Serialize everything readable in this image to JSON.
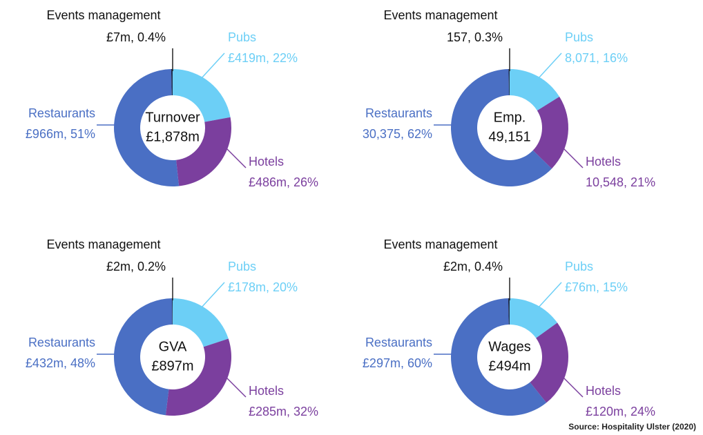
{
  "chart_data": [
    {
      "type": "pie",
      "center_title": "Turnover",
      "center_value": "£1,878m",
      "categories": [
        "Pubs",
        "Hotels",
        "Restaurants",
        "Events management"
      ],
      "values": [
        22,
        26,
        51,
        0.4
      ],
      "value_labels": [
        "£419m, 22%",
        "£486m, 26%",
        "£966m, 51%",
        "£7m, 0.4%"
      ],
      "colors": [
        "#6ccff6",
        "#7b3f9e",
        "#4a6fc4",
        "#1f2d4d"
      ]
    },
    {
      "type": "pie",
      "center_title": "Emp.",
      "center_value": "49,151",
      "categories": [
        "Pubs",
        "Hotels",
        "Restaurants",
        "Events management"
      ],
      "values": [
        16,
        21,
        62,
        0.3
      ],
      "value_labels": [
        "8,071, 16%",
        "10,548, 21%",
        "30,375, 62%",
        "157, 0.3%"
      ],
      "colors": [
        "#6ccff6",
        "#7b3f9e",
        "#4a6fc4",
        "#1f2d4d"
      ]
    },
    {
      "type": "pie",
      "center_title": "GVA",
      "center_value": "£897m",
      "categories": [
        "Pubs",
        "Hotels",
        "Restaurants",
        "Events management"
      ],
      "values": [
        20,
        32,
        48,
        0.2
      ],
      "value_labels": [
        "£178m, 20%",
        "£285m, 32%",
        "£432m, 48%",
        "£2m, 0.2%"
      ],
      "colors": [
        "#6ccff6",
        "#7b3f9e",
        "#4a6fc4",
        "#1f2d4d"
      ]
    },
    {
      "type": "pie",
      "center_title": "Wages",
      "center_value": "£494m",
      "categories": [
        "Pubs",
        "Hotels",
        "Restaurants",
        "Events management"
      ],
      "values": [
        15,
        24,
        60,
        0.4
      ],
      "value_labels": [
        "£76m, 15%",
        "£120m, 24%",
        "£297m, 60%",
        "£2m, 0.4%"
      ],
      "colors": [
        "#6ccff6",
        "#7b3f9e",
        "#4a6fc4",
        "#1f2d4d"
      ]
    }
  ],
  "source": "Source: Hospitality Ulster (2020)"
}
